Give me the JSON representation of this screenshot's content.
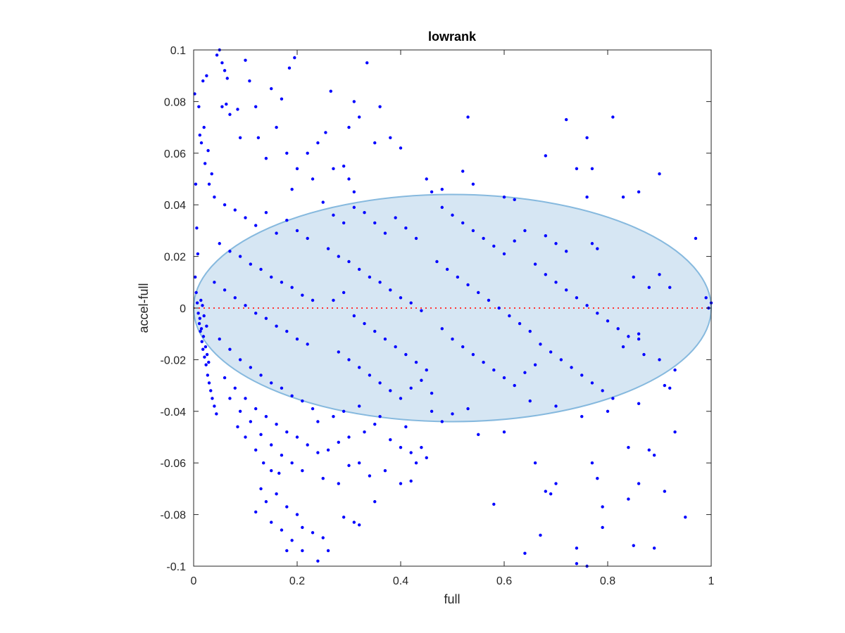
{
  "chart_data": {
    "type": "scatter",
    "title": "lowrank",
    "xlabel": "full",
    "ylabel": "accel-full",
    "xlim": [
      0,
      1
    ],
    "ylim": [
      -0.1,
      0.1
    ],
    "x_ticks": [
      0,
      0.2,
      0.4,
      0.6,
      0.8,
      1
    ],
    "x_tick_labels": [
      "0",
      "0.2",
      "0.4",
      "0.6",
      "0.8",
      "1"
    ],
    "y_ticks": [
      -0.1,
      -0.08,
      -0.06,
      -0.04,
      -0.02,
      0,
      0.02,
      0.04,
      0.06,
      0.08,
      0.1
    ],
    "y_tick_labels": [
      "-0.1",
      "-0.08",
      "-0.06",
      "-0.04",
      "-0.02",
      "0",
      "0.02",
      "0.04",
      "0.06",
      "0.08",
      "0.1"
    ],
    "grid": false,
    "reference_line": {
      "y": 0,
      "style": "dotted",
      "color": "#ff3333"
    },
    "ellipse": {
      "center": [
        0.5,
        0
      ],
      "radius_x": 0.5,
      "radius_y": 0.044,
      "fill": "#d6e6f3",
      "stroke": "#86b9de"
    },
    "marker_color": "#0000ff",
    "points": [
      [
        0.002,
        0.083
      ],
      [
        0.004,
        0.048
      ],
      [
        0.006,
        0.031
      ],
      [
        0.008,
        0.021
      ],
      [
        0.003,
        0.012
      ],
      [
        0.005,
        0.006
      ],
      [
        0.007,
        0.002
      ],
      [
        0.009,
        -0.002
      ],
      [
        0.011,
        -0.006
      ],
      [
        0.013,
        -0.009
      ],
      [
        0.016,
        -0.013
      ],
      [
        0.018,
        -0.016
      ],
      [
        0.021,
        -0.019
      ],
      [
        0.024,
        -0.022
      ],
      [
        0.027,
        -0.026
      ],
      [
        0.03,
        -0.029
      ],
      [
        0.033,
        -0.032
      ],
      [
        0.036,
        -0.035
      ],
      [
        0.04,
        -0.038
      ],
      [
        0.044,
        -0.041
      ],
      [
        0.012,
        -0.004
      ],
      [
        0.015,
        -0.008
      ],
      [
        0.019,
        -0.011
      ],
      [
        0.023,
        -0.015
      ],
      [
        0.026,
        -0.018
      ],
      [
        0.029,
        -0.021
      ],
      [
        0.014,
        0.003
      ],
      [
        0.017,
        0.001
      ],
      [
        0.02,
        -0.003
      ],
      [
        0.025,
        -0.007
      ],
      [
        0.01,
        0.078
      ],
      [
        0.012,
        0.067
      ],
      [
        0.015,
        0.064
      ],
      [
        0.02,
        0.07
      ],
      [
        0.022,
        0.056
      ],
      [
        0.028,
        0.061
      ],
      [
        0.03,
        0.048
      ],
      [
        0.035,
        0.052
      ],
      [
        0.018,
        0.088
      ],
      [
        0.025,
        0.09
      ],
      [
        0.045,
        0.098
      ],
      [
        0.05,
        0.1
      ],
      [
        0.055,
        0.095
      ],
      [
        0.06,
        0.092
      ],
      [
        0.065,
        0.089
      ],
      [
        0.055,
        0.078
      ],
      [
        0.063,
        0.079
      ],
      [
        0.07,
        0.075
      ],
      [
        0.085,
        0.077
      ],
      [
        0.09,
        0.066
      ],
      [
        0.1,
        0.096
      ],
      [
        0.108,
        0.088
      ],
      [
        0.12,
        0.078
      ],
      [
        0.15,
        0.085
      ],
      [
        0.17,
        0.081
      ],
      [
        0.185,
        0.093
      ],
      [
        0.195,
        0.097
      ],
      [
        0.16,
        0.07
      ],
      [
        0.125,
        0.066
      ],
      [
        0.14,
        0.058
      ],
      [
        0.18,
        0.06
      ],
      [
        0.2,
        0.054
      ],
      [
        0.22,
        0.06
      ],
      [
        0.24,
        0.064
      ],
      [
        0.255,
        0.068
      ],
      [
        0.265,
        0.084
      ],
      [
        0.31,
        0.08
      ],
      [
        0.32,
        0.074
      ],
      [
        0.335,
        0.095
      ],
      [
        0.36,
        0.078
      ],
      [
        0.3,
        0.07
      ],
      [
        0.35,
        0.064
      ],
      [
        0.38,
        0.066
      ],
      [
        0.4,
        0.062
      ],
      [
        0.19,
        0.046
      ],
      [
        0.23,
        0.05
      ],
      [
        0.27,
        0.054
      ],
      [
        0.29,
        0.055
      ],
      [
        0.3,
        0.05
      ],
      [
        0.31,
        0.045
      ],
      [
        0.04,
        0.043
      ],
      [
        0.06,
        0.04
      ],
      [
        0.08,
        0.038
      ],
      [
        0.1,
        0.035
      ],
      [
        0.12,
        0.032
      ],
      [
        0.14,
        0.037
      ],
      [
        0.16,
        0.029
      ],
      [
        0.18,
        0.034
      ],
      [
        0.2,
        0.03
      ],
      [
        0.22,
        0.027
      ],
      [
        0.05,
        0.025
      ],
      [
        0.07,
        0.022
      ],
      [
        0.09,
        0.02
      ],
      [
        0.11,
        0.017
      ],
      [
        0.13,
        0.015
      ],
      [
        0.15,
        0.012
      ],
      [
        0.17,
        0.01
      ],
      [
        0.19,
        0.008
      ],
      [
        0.21,
        0.005
      ],
      [
        0.23,
        0.003
      ],
      [
        0.04,
        0.01
      ],
      [
        0.06,
        0.007
      ],
      [
        0.08,
        0.004
      ],
      [
        0.1,
        0.001
      ],
      [
        0.12,
        -0.002
      ],
      [
        0.14,
        -0.004
      ],
      [
        0.16,
        -0.007
      ],
      [
        0.18,
        -0.009
      ],
      [
        0.2,
        -0.012
      ],
      [
        0.22,
        -0.014
      ],
      [
        0.05,
        -0.012
      ],
      [
        0.07,
        -0.016
      ],
      [
        0.09,
        -0.02
      ],
      [
        0.11,
        -0.023
      ],
      [
        0.13,
        -0.026
      ],
      [
        0.15,
        -0.029
      ],
      [
        0.17,
        -0.031
      ],
      [
        0.19,
        -0.034
      ],
      [
        0.21,
        -0.036
      ],
      [
        0.23,
        -0.039
      ],
      [
        0.06,
        -0.027
      ],
      [
        0.08,
        -0.031
      ],
      [
        0.1,
        -0.035
      ],
      [
        0.12,
        -0.039
      ],
      [
        0.14,
        -0.042
      ],
      [
        0.16,
        -0.045
      ],
      [
        0.18,
        -0.048
      ],
      [
        0.2,
        -0.05
      ],
      [
        0.22,
        -0.053
      ],
      [
        0.24,
        -0.056
      ],
      [
        0.07,
        -0.035
      ],
      [
        0.09,
        -0.04
      ],
      [
        0.11,
        -0.044
      ],
      [
        0.13,
        -0.049
      ],
      [
        0.15,
        -0.053
      ],
      [
        0.17,
        -0.057
      ],
      [
        0.19,
        -0.06
      ],
      [
        0.21,
        -0.063
      ],
      [
        0.085,
        -0.046
      ],
      [
        0.1,
        -0.05
      ],
      [
        0.12,
        -0.055
      ],
      [
        0.135,
        -0.06
      ],
      [
        0.15,
        -0.063
      ],
      [
        0.165,
        -0.064
      ],
      [
        0.13,
        -0.07
      ],
      [
        0.14,
        -0.075
      ],
      [
        0.16,
        -0.072
      ],
      [
        0.18,
        -0.077
      ],
      [
        0.2,
        -0.08
      ],
      [
        0.12,
        -0.079
      ],
      [
        0.15,
        -0.083
      ],
      [
        0.17,
        -0.086
      ],
      [
        0.19,
        -0.09
      ],
      [
        0.21,
        -0.085
      ],
      [
        0.23,
        -0.087
      ],
      [
        0.25,
        -0.089
      ],
      [
        0.18,
        -0.094
      ],
      [
        0.21,
        -0.094
      ],
      [
        0.24,
        -0.098
      ],
      [
        0.26,
        -0.094
      ],
      [
        0.29,
        -0.081
      ],
      [
        0.31,
        -0.083
      ],
      [
        0.32,
        -0.084
      ],
      [
        0.35,
        -0.075
      ],
      [
        0.25,
        -0.066
      ],
      [
        0.28,
        -0.068
      ],
      [
        0.3,
        -0.061
      ],
      [
        0.32,
        -0.06
      ],
      [
        0.34,
        -0.065
      ],
      [
        0.37,
        -0.063
      ],
      [
        0.26,
        -0.055
      ],
      [
        0.28,
        -0.052
      ],
      [
        0.3,
        -0.05
      ],
      [
        0.33,
        -0.048
      ],
      [
        0.35,
        -0.045
      ],
      [
        0.38,
        -0.051
      ],
      [
        0.4,
        -0.054
      ],
      [
        0.42,
        -0.056
      ],
      [
        0.44,
        -0.054
      ],
      [
        0.45,
        -0.058
      ],
      [
        0.24,
        -0.044
      ],
      [
        0.27,
        -0.042
      ],
      [
        0.29,
        -0.04
      ],
      [
        0.32,
        -0.038
      ],
      [
        0.36,
        -0.042
      ],
      [
        0.41,
        -0.046
      ],
      [
        0.46,
        -0.04
      ],
      [
        0.48,
        -0.044
      ],
      [
        0.5,
        -0.041
      ],
      [
        0.53,
        -0.039
      ],
      [
        0.25,
        0.041
      ],
      [
        0.27,
        0.036
      ],
      [
        0.29,
        0.033
      ],
      [
        0.31,
        0.039
      ],
      [
        0.33,
        0.037
      ],
      [
        0.35,
        0.033
      ],
      [
        0.37,
        0.029
      ],
      [
        0.39,
        0.035
      ],
      [
        0.41,
        0.031
      ],
      [
        0.43,
        0.027
      ],
      [
        0.26,
        0.023
      ],
      [
        0.28,
        0.02
      ],
      [
        0.3,
        0.018
      ],
      [
        0.32,
        0.015
      ],
      [
        0.34,
        0.012
      ],
      [
        0.36,
        0.01
      ],
      [
        0.38,
        0.007
      ],
      [
        0.4,
        0.004
      ],
      [
        0.42,
        0.002
      ],
      [
        0.44,
        -0.001
      ],
      [
        0.27,
        0.003
      ],
      [
        0.29,
        0.006
      ],
      [
        0.31,
        -0.003
      ],
      [
        0.33,
        -0.006
      ],
      [
        0.35,
        -0.009
      ],
      [
        0.37,
        -0.012
      ],
      [
        0.39,
        -0.015
      ],
      [
        0.41,
        -0.018
      ],
      [
        0.43,
        -0.021
      ],
      [
        0.45,
        -0.024
      ],
      [
        0.28,
        -0.017
      ],
      [
        0.3,
        -0.02
      ],
      [
        0.32,
        -0.023
      ],
      [
        0.34,
        -0.026
      ],
      [
        0.36,
        -0.029
      ],
      [
        0.38,
        -0.032
      ],
      [
        0.4,
        -0.035
      ],
      [
        0.42,
        -0.031
      ],
      [
        0.44,
        -0.028
      ],
      [
        0.46,
        -0.033
      ],
      [
        0.46,
        0.045
      ],
      [
        0.48,
        0.039
      ],
      [
        0.5,
        0.036
      ],
      [
        0.52,
        0.033
      ],
      [
        0.54,
        0.03
      ],
      [
        0.56,
        0.027
      ],
      [
        0.58,
        0.024
      ],
      [
        0.6,
        0.021
      ],
      [
        0.62,
        0.026
      ],
      [
        0.64,
        0.03
      ],
      [
        0.47,
        0.018
      ],
      [
        0.49,
        0.015
      ],
      [
        0.51,
        0.012
      ],
      [
        0.53,
        0.009
      ],
      [
        0.55,
        0.006
      ],
      [
        0.57,
        0.003
      ],
      [
        0.59,
        0.0
      ],
      [
        0.61,
        -0.003
      ],
      [
        0.63,
        -0.006
      ],
      [
        0.65,
        -0.009
      ],
      [
        0.48,
        -0.008
      ],
      [
        0.5,
        -0.012
      ],
      [
        0.52,
        -0.015
      ],
      [
        0.54,
        -0.018
      ],
      [
        0.56,
        -0.021
      ],
      [
        0.58,
        -0.024
      ],
      [
        0.6,
        -0.027
      ],
      [
        0.62,
        -0.03
      ],
      [
        0.64,
        -0.025
      ],
      [
        0.66,
        -0.022
      ],
      [
        0.66,
        0.017
      ],
      [
        0.68,
        0.013
      ],
      [
        0.7,
        0.01
      ],
      [
        0.72,
        0.007
      ],
      [
        0.74,
        0.004
      ],
      [
        0.76,
        0.001
      ],
      [
        0.78,
        -0.002
      ],
      [
        0.8,
        -0.005
      ],
      [
        0.82,
        -0.008
      ],
      [
        0.84,
        -0.011
      ],
      [
        0.67,
        -0.014
      ],
      [
        0.69,
        -0.017
      ],
      [
        0.71,
        -0.02
      ],
      [
        0.73,
        -0.023
      ],
      [
        0.75,
        -0.026
      ],
      [
        0.77,
        -0.029
      ],
      [
        0.79,
        -0.032
      ],
      [
        0.81,
        -0.035
      ],
      [
        0.83,
        -0.015
      ],
      [
        0.86,
        -0.01
      ],
      [
        0.68,
        0.028
      ],
      [
        0.7,
        0.025
      ],
      [
        0.72,
        0.022
      ],
      [
        0.77,
        0.025
      ],
      [
        0.78,
        0.023
      ],
      [
        0.85,
        0.012
      ],
      [
        0.88,
        0.008
      ],
      [
        0.9,
        0.013
      ],
      [
        0.92,
        0.008
      ],
      [
        0.97,
        0.027
      ],
      [
        0.86,
        -0.012
      ],
      [
        0.87,
        -0.018
      ],
      [
        0.9,
        -0.02
      ],
      [
        0.91,
        -0.03
      ],
      [
        0.93,
        -0.024
      ],
      [
        0.86,
        -0.037
      ],
      [
        0.8,
        -0.04
      ],
      [
        0.75,
        -0.042
      ],
      [
        0.7,
        -0.038
      ],
      [
        0.65,
        -0.036
      ],
      [
        0.45,
        0.05
      ],
      [
        0.48,
        0.046
      ],
      [
        0.52,
        0.053
      ],
      [
        0.54,
        0.048
      ],
      [
        0.53,
        0.074
      ],
      [
        0.6,
        0.043
      ],
      [
        0.62,
        0.042
      ],
      [
        0.68,
        0.059
      ],
      [
        0.72,
        0.073
      ],
      [
        0.76,
        0.066
      ],
      [
        0.74,
        0.054
      ],
      [
        0.77,
        0.054
      ],
      [
        0.81,
        0.074
      ],
      [
        0.86,
        0.045
      ],
      [
        0.83,
        0.043
      ],
      [
        0.9,
        0.052
      ],
      [
        0.76,
        0.043
      ],
      [
        0.99,
        0.004
      ],
      [
        1.0,
        0.002
      ],
      [
        0.995,
        0.0
      ],
      [
        0.58,
        -0.076
      ],
      [
        0.64,
        -0.095
      ],
      [
        0.66,
        -0.06
      ],
      [
        0.67,
        -0.088
      ],
      [
        0.68,
        -0.071
      ],
      [
        0.69,
        -0.072
      ],
      [
        0.7,
        -0.068
      ],
      [
        0.74,
        -0.093
      ],
      [
        0.74,
        -0.099
      ],
      [
        0.76,
        -0.1
      ],
      [
        0.77,
        -0.06
      ],
      [
        0.78,
        -0.066
      ],
      [
        0.79,
        -0.077
      ],
      [
        0.79,
        -0.085
      ],
      [
        0.84,
        -0.054
      ],
      [
        0.84,
        -0.074
      ],
      [
        0.85,
        -0.092
      ],
      [
        0.86,
        -0.068
      ],
      [
        0.88,
        -0.055
      ],
      [
        0.89,
        -0.057
      ],
      [
        0.89,
        -0.093
      ],
      [
        0.91,
        -0.071
      ],
      [
        0.93,
        -0.048
      ],
      [
        0.95,
        -0.081
      ],
      [
        0.92,
        -0.031
      ],
      [
        0.6,
        -0.048
      ],
      [
        0.55,
        -0.049
      ],
      [
        0.43,
        -0.06
      ],
      [
        0.42,
        -0.067
      ],
      [
        0.4,
        -0.068
      ]
    ]
  }
}
